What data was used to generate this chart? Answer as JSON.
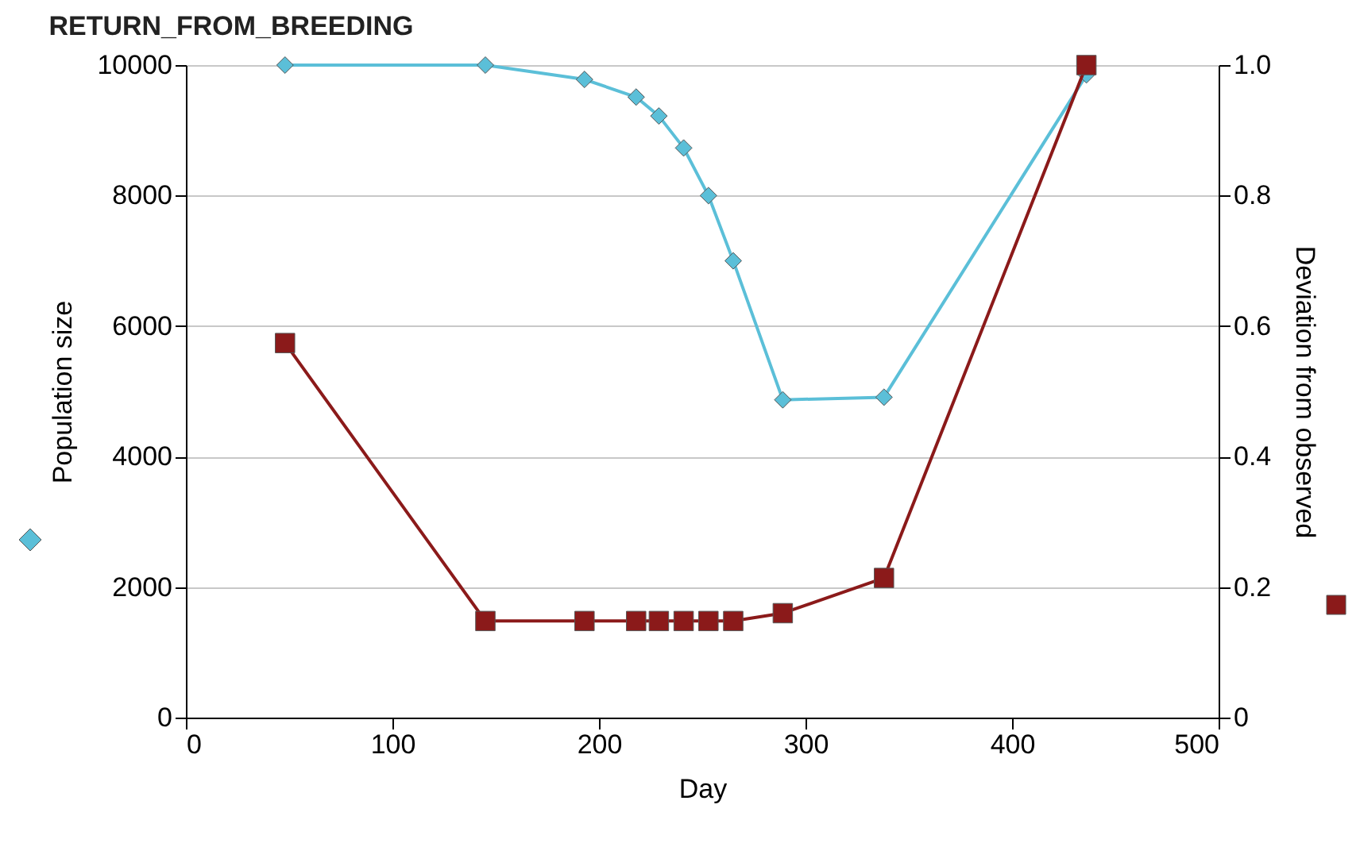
{
  "chart_data": {
    "type": "line",
    "title": "RETURN_FROM_BREEDING",
    "xlabel": "Day",
    "ylabel": "Population size",
    "y2label": "Deviation from observed",
    "x": [
      48,
      145,
      193,
      218,
      229,
      241,
      253,
      265,
      289,
      338,
      436
    ],
    "series": [
      {
        "color": "#5bbfd8",
        "marker": "diamond",
        "values": [
          10000,
          10000,
          9780,
          9510,
          9220,
          8730,
          8000,
          7000,
          4870,
          4910,
          9850
        ]
      },
      {
        "color": "#8b1a1a",
        "marker": "square",
        "axis": "y2",
        "values": [
          0.574,
          0.148,
          0.148,
          0.148,
          0.148,
          0.148,
          0.148,
          0.148,
          0.16,
          0.214,
          1.0
        ]
      }
    ],
    "xlim": [
      0,
      500
    ],
    "xticks": [
      0,
      100,
      200,
      300,
      400,
      500
    ],
    "ylim": [
      0,
      10000
    ],
    "yticks": [
      0,
      2000,
      4000,
      6000,
      8000,
      10000
    ],
    "y2lim": [
      0,
      1
    ],
    "y2ticks": [
      0,
      0.2,
      0.4,
      0.6,
      0.8,
      {
        "value": 1,
        "label": "1.0"
      }
    ],
    "grid": "y"
  }
}
